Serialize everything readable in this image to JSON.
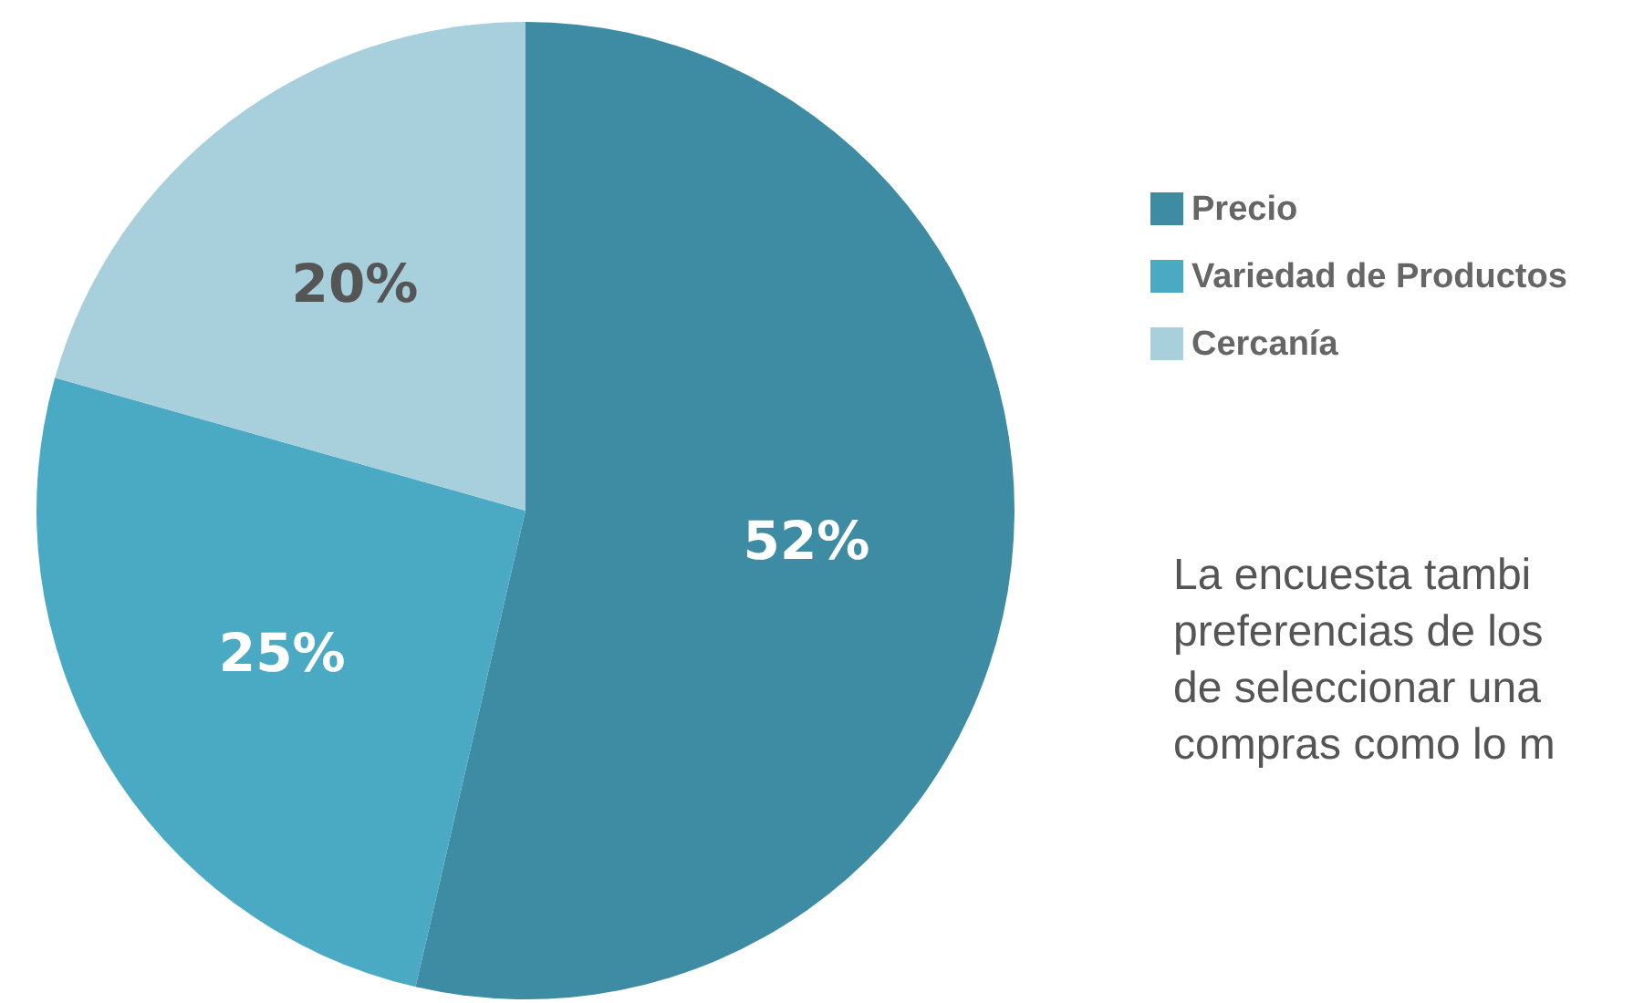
{
  "chart_data": {
    "type": "pie",
    "categories": [
      "Precio",
      "Variedad de Productos",
      "Cercanía"
    ],
    "values": [
      52,
      25,
      20
    ],
    "colors": [
      "#3d8ca3",
      "#4aaac4",
      "#a8cfdc"
    ],
    "value_labels": [
      "52%",
      "25%",
      "20%"
    ],
    "legend": "right",
    "annotations": [
      "La encuesta tambi",
      "preferencias de los",
      "de seleccionar una",
      "compras como lo m"
    ]
  }
}
